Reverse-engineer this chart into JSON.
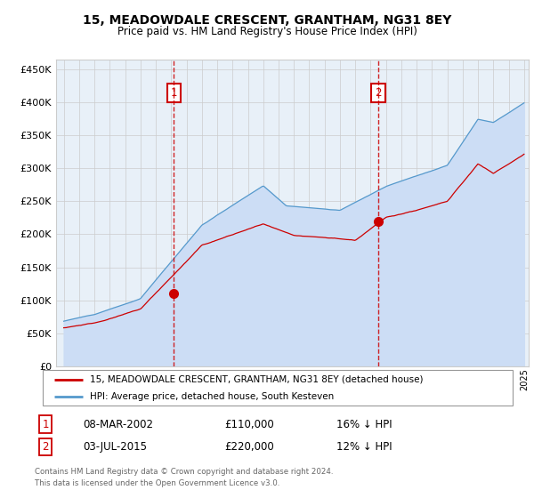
{
  "title": "15, MEADOWDALE CRESCENT, GRANTHAM, NG31 8EY",
  "subtitle": "Price paid vs. HM Land Registry's House Price Index (HPI)",
  "yticks": [
    0,
    50000,
    100000,
    150000,
    200000,
    250000,
    300000,
    350000,
    400000,
    450000
  ],
  "ytick_labels": [
    "£0",
    "£50K",
    "£100K",
    "£150K",
    "£200K",
    "£250K",
    "£300K",
    "£350K",
    "£400K",
    "£450K"
  ],
  "xlim_start": 1994.5,
  "xlim_end": 2025.3,
  "ylim_min": 0,
  "ylim_max": 465000,
  "sale1_date": 2002.18,
  "sale1_price": 110000,
  "sale1_label": "1",
  "sale2_date": 2015.5,
  "sale2_price": 220000,
  "sale2_label": "2",
  "red_line_color": "#cc0000",
  "blue_line_color": "#5599cc",
  "blue_fill_color": "#ccddf5",
  "annotation_box_color": "#cc0000",
  "grid_color": "#cccccc",
  "bg_color": "#e8f0f8",
  "legend_label_red": "15, MEADOWDALE CRESCENT, GRANTHAM, NG31 8EY (detached house)",
  "legend_label_blue": "HPI: Average price, detached house, South Kesteven",
  "footer_line1": "Contains HM Land Registry data © Crown copyright and database right 2024.",
  "footer_line2": "This data is licensed under the Open Government Licence v3.0.",
  "table_row1_num": "1",
  "table_row1_date": "08-MAR-2002",
  "table_row1_price": "£110,000",
  "table_row1_hpi": "16% ↓ HPI",
  "table_row2_num": "2",
  "table_row2_date": "03-JUL-2015",
  "table_row2_price": "£220,000",
  "table_row2_hpi": "12% ↓ HPI"
}
